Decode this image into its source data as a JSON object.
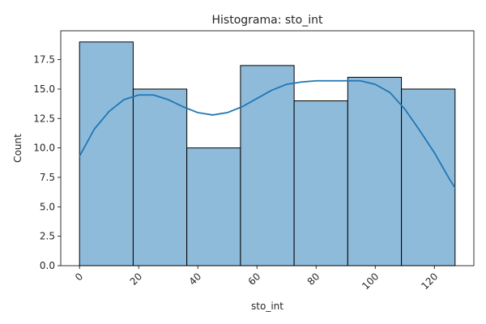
{
  "chart_data": {
    "type": "bar",
    "title": "Histograma: sto_int",
    "xlabel": "sto_int",
    "ylabel": "Count",
    "bin_edges": [
      0,
      18.14,
      36.29,
      54.43,
      72.57,
      90.71,
      108.86,
      127
    ],
    "counts": [
      19,
      15,
      10,
      17,
      14,
      16,
      15
    ],
    "kde": {
      "x": [
        0,
        5,
        10,
        15,
        20,
        25,
        30,
        35,
        40,
        45,
        50,
        55,
        60,
        65,
        70,
        75,
        80,
        85,
        90,
        95,
        100,
        105,
        110,
        115,
        120,
        125,
        127
      ],
      "y": [
        9.3,
        11.6,
        13.1,
        14.1,
        14.5,
        14.5,
        14.1,
        13.5,
        13.0,
        12.8,
        13.0,
        13.5,
        14.2,
        14.9,
        15.4,
        15.6,
        15.7,
        15.7,
        15.7,
        15.7,
        15.4,
        14.7,
        13.3,
        11.5,
        9.6,
        7.4,
        6.6
      ]
    },
    "xlim": [
      -6.35,
      133.35
    ],
    "ylim": [
      0,
      19.95
    ],
    "xticks": [
      0,
      20,
      40,
      60,
      80,
      100,
      120
    ],
    "yticks": [
      0.0,
      2.5,
      5.0,
      7.5,
      10.0,
      12.5,
      15.0,
      17.5
    ],
    "ytick_labels": [
      "0.0",
      "2.5",
      "5.0",
      "7.5",
      "10.0",
      "12.5",
      "15.0",
      "17.5"
    ],
    "xtick_labels": [
      "0",
      "20",
      "40",
      "60",
      "80",
      "100",
      "120"
    ],
    "grid": false,
    "colors": {
      "bar_fill": "#8fbbdb",
      "bar_edge": "#000000",
      "kde_line": "#1f77b4"
    }
  }
}
